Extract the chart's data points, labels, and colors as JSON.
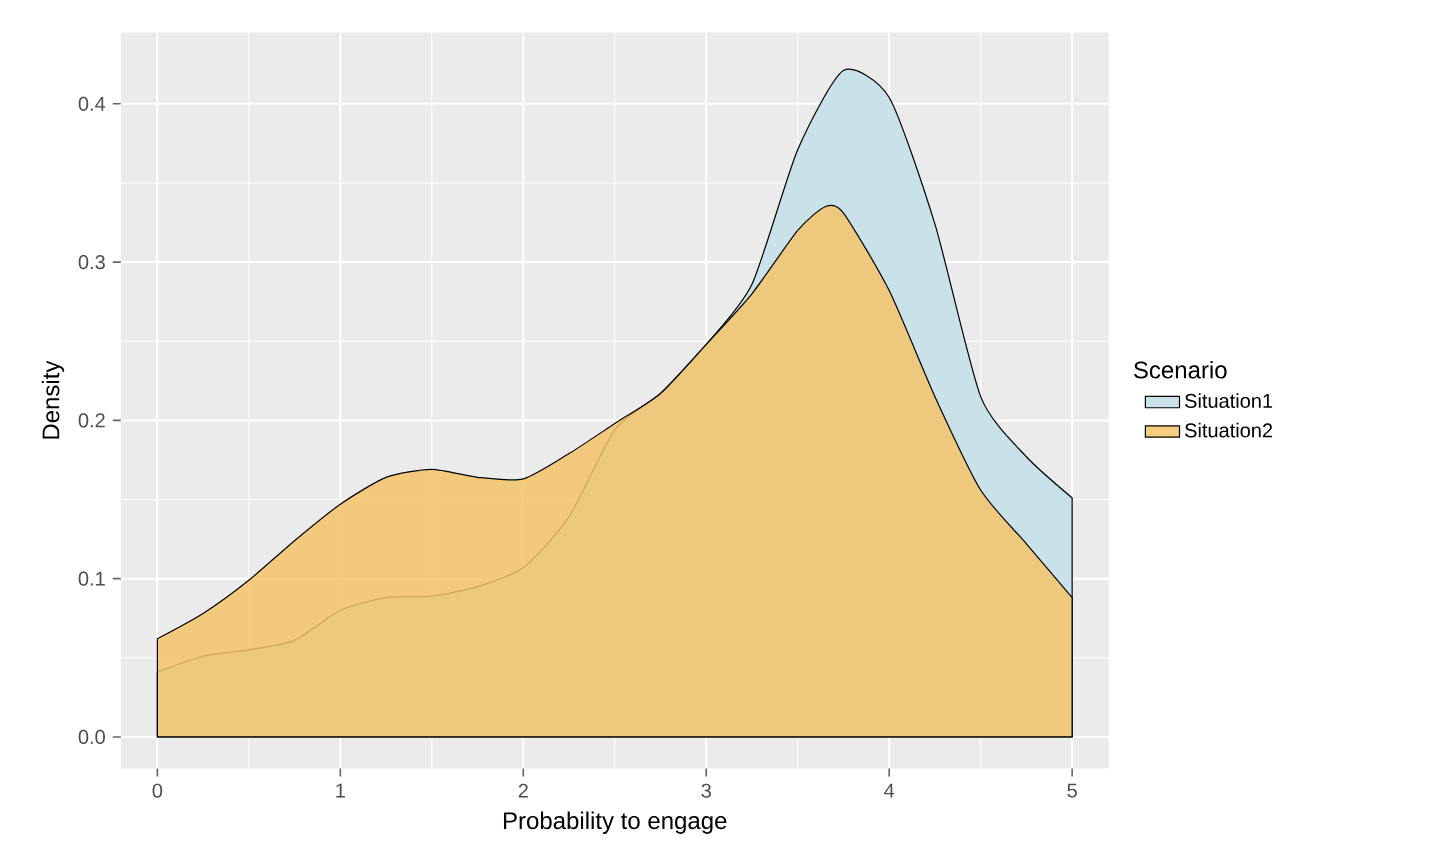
{
  "chart_data": {
    "type": "area",
    "xlabel": "Probability to engage",
    "ylabel": "Density",
    "legend_title": "Scenario",
    "xlim": [
      -0.2,
      5.2
    ],
    "ylim": [
      -0.02,
      0.445
    ],
    "xticks": [
      0,
      1,
      2,
      3,
      4,
      5
    ],
    "yticks": [
      {
        "value": 0,
        "label": "0.0"
      },
      0.1,
      0.2,
      0.3,
      0.4
    ],
    "grid": true,
    "legend": "right",
    "series": [
      {
        "name": "Situation1",
        "color": "#c9e1e9",
        "x": [
          0,
          0.25,
          0.5,
          0.75,
          1,
          1.25,
          1.5,
          1.75,
          2,
          2.25,
          2.5,
          2.75,
          3,
          3.25,
          3.5,
          3.75,
          4,
          4.25,
          4.5,
          4.75,
          5
        ],
        "values": [
          0.041,
          0.051,
          0.055,
          0.061,
          0.08,
          0.088,
          0.089,
          0.095,
          0.107,
          0.139,
          0.194,
          0.217,
          0.248,
          0.286,
          0.371,
          0.421,
          0.404,
          0.324,
          0.215,
          0.177,
          0.151
        ]
      },
      {
        "name": "Situation2",
        "color": "#f5c46a",
        "x": [
          0,
          0.25,
          0.5,
          0.75,
          1,
          1.25,
          1.5,
          1.75,
          2,
          2.25,
          2.5,
          2.75,
          3,
          3.25,
          3.5,
          3.65,
          3.75,
          4,
          4.25,
          4.5,
          4.75,
          5
        ],
        "values": [
          0.062,
          0.078,
          0.099,
          0.124,
          0.147,
          0.164,
          0.169,
          0.164,
          0.163,
          0.179,
          0.198,
          0.217,
          0.248,
          0.28,
          0.32,
          0.335,
          0.331,
          0.282,
          0.215,
          0.156,
          0.122,
          0.088
        ]
      }
    ]
  }
}
